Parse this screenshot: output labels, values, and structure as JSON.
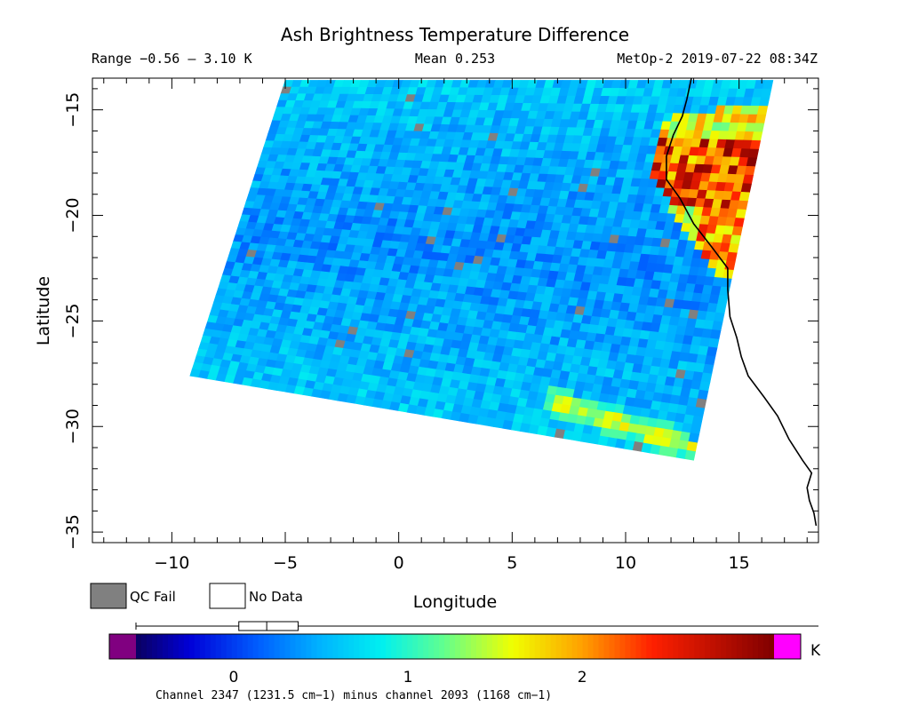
{
  "chart_data": {
    "type": "heatmap",
    "title": "Ash Brightness Temperature Difference",
    "range_text": "Range −0.56 – 3.10 K",
    "mean_text": "Mean 0.253",
    "source_text": "MetOp-2 2019-07-22 08:34Z",
    "xlabel": "Longitude",
    "ylabel": "Latitude",
    "xlim": [
      -13.5,
      18.5
    ],
    "ylim": [
      -35.5,
      -13.5
    ],
    "xticks": [
      -10,
      -5,
      0,
      5,
      10,
      15
    ],
    "xtick_labels": [
      "−10",
      "−5",
      "0",
      "5",
      "10",
      "15"
    ],
    "yticks": [
      -15,
      -20,
      -25,
      -30,
      -35
    ],
    "ytick_labels": [
      "−15",
      "−20",
      "−25",
      "−30",
      "−35"
    ],
    "grid": false,
    "swath": {
      "corners": {
        "top_left": [
          -5.0,
          -13.6
        ],
        "top_right": [
          16.5,
          -13.6
        ],
        "bottom_right": [
          13.0,
          -31.6
        ],
        "bottom_left": [
          -9.2,
          -27.6
        ]
      },
      "background_value": 0.35,
      "features": [
        {
          "name": "coastal ash band",
          "lon_range": [
            12.3,
            15.2
          ],
          "lat_range": [
            -23.0,
            -15.0
          ],
          "value_range": [
            1.3,
            3.1
          ]
        },
        {
          "name": "southern arc band",
          "lon_range": [
            7.0,
            13.0
          ],
          "lat_range": [
            -31.0,
            -28.8
          ],
          "value_range": [
            1.0,
            1.8
          ]
        }
      ]
    },
    "coastline": [
      [
        12.9,
        -13.5
      ],
      [
        12.7,
        -14.5
      ],
      [
        12.5,
        -15.3
      ],
      [
        12.1,
        -16.2
      ],
      [
        11.8,
        -17.2
      ],
      [
        11.8,
        -18.3
      ],
      [
        12.4,
        -19.2
      ],
      [
        13.0,
        -20.4
      ],
      [
        13.8,
        -21.5
      ],
      [
        14.5,
        -22.5
      ],
      [
        14.5,
        -23.5
      ],
      [
        14.6,
        -24.8
      ],
      [
        14.9,
        -25.8
      ],
      [
        15.1,
        -26.7
      ],
      [
        15.4,
        -27.6
      ],
      [
        16.1,
        -28.6
      ],
      [
        16.7,
        -29.5
      ],
      [
        17.2,
        -30.6
      ],
      [
        17.8,
        -31.6
      ],
      [
        18.2,
        -32.2
      ],
      [
        18.0,
        -32.9
      ],
      [
        18.1,
        -33.5
      ],
      [
        18.3,
        -34.1
      ],
      [
        18.4,
        -34.7
      ]
    ],
    "colorbar": {
      "unit": "K",
      "min": -0.56,
      "max": 3.1,
      "ticks": [
        0,
        1,
        2
      ],
      "tick_labels": [
        "0",
        "1",
        "2"
      ],
      "stops": [
        {
          "value": -0.56,
          "color": "#0a0060"
        },
        {
          "value": -0.25,
          "color": "#0000d8"
        },
        {
          "value": 0.15,
          "color": "#0060ff"
        },
        {
          "value": 0.5,
          "color": "#00b4ff"
        },
        {
          "value": 0.85,
          "color": "#00f0f0"
        },
        {
          "value": 1.2,
          "color": "#60ff90"
        },
        {
          "value": 1.6,
          "color": "#f0ff00"
        },
        {
          "value": 2.0,
          "color": "#ffa000"
        },
        {
          "value": 2.4,
          "color": "#ff2000"
        },
        {
          "value": 3.1,
          "color": "#800000"
        }
      ],
      "under_color": "#800080",
      "over_color": "#ff00ff",
      "caption": "Channel 2347 (1231.5 cm−1) minus channel 2093 (1168 cm−1)",
      "boxplot": {
        "whisker_low": -0.56,
        "q1": 0.03,
        "median": 0.19,
        "q3": 0.37,
        "whisker_high": 3.1
      }
    },
    "legend": [
      {
        "label": "QC Fail",
        "color": "#808080"
      },
      {
        "label": "No Data",
        "color": "#ffffff"
      }
    ],
    "qc_fail_color": "#808080",
    "coast_color": "#000000"
  }
}
